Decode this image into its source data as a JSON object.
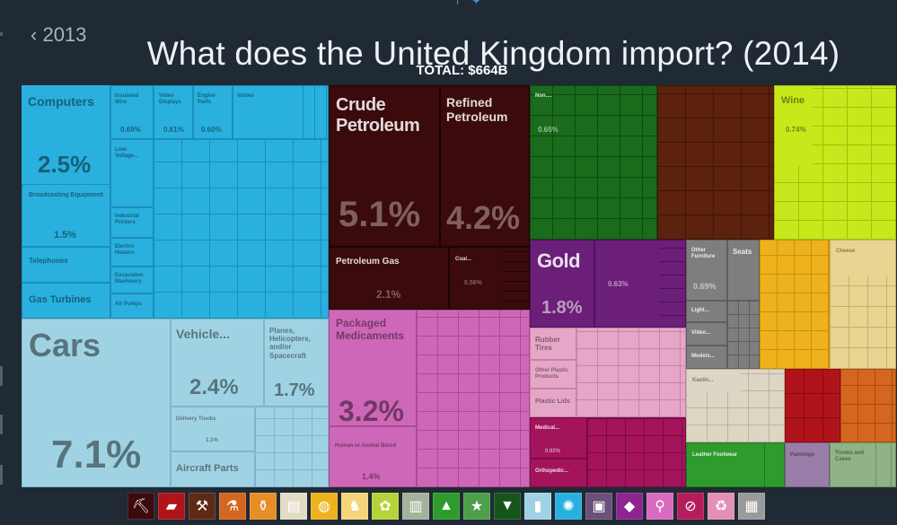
{
  "header": {
    "prev_year": "2013",
    "title": "What does the United Kingdom import? (2014)",
    "total": "TOTAL: $664B"
  },
  "chart_data": {
    "type": "treemap",
    "title": "What does the United Kingdom import? (2014)",
    "total": "TOTAL: $664B",
    "cells": [
      {
        "label": "Computers",
        "value": "2.5%",
        "color": "#29b0de"
      },
      {
        "label": "Insulated Wire",
        "value": "0.69%",
        "color": "#29b0de"
      },
      {
        "label": "Video Displays",
        "value": "0.61%",
        "color": "#29b0de"
      },
      {
        "label": "Engine Parts",
        "value": "0.60%",
        "color": "#29b0de"
      },
      {
        "label": "Valves",
        "value": "",
        "color": "#29b0de"
      },
      {
        "label": "Low-Voltage...",
        "value": "",
        "color": "#29b0de"
      },
      {
        "label": "Broadcasting Equipment",
        "value": "1.5%",
        "color": "#29b0de"
      },
      {
        "label": "Industrial Printers",
        "value": "",
        "color": "#29b0de"
      },
      {
        "label": "Electric Heaters",
        "value": "",
        "color": "#29b0de"
      },
      {
        "label": "Telephones",
        "value": "",
        "color": "#29b0de"
      },
      {
        "label": "Excavation Machinery",
        "value": "",
        "color": "#29b0de"
      },
      {
        "label": "Gas Turbines",
        "value": "",
        "color": "#29b0de"
      },
      {
        "label": "Air Pumps",
        "value": "",
        "color": "#29b0de"
      },
      {
        "label": "Cars",
        "value": "7.1%",
        "color": "#9fd3e3"
      },
      {
        "label": "Vehicle...",
        "value": "2.4%",
        "color": "#9fd3e3"
      },
      {
        "label": "Planes, Helicopters, and/or Spacecraft",
        "value": "1.7%",
        "color": "#9fd3e3"
      },
      {
        "label": "Delivery Trucks",
        "value": "1.1%",
        "color": "#9fd3e3"
      },
      {
        "label": "Aircraft Parts",
        "value": "",
        "color": "#9fd3e3"
      },
      {
        "label": "Crude Petroleum",
        "value": "5.1%",
        "color": "#3b0a0c"
      },
      {
        "label": "Refined Petroleum",
        "value": "4.2%",
        "color": "#3b0a0c"
      },
      {
        "label": "Petroleum Gas",
        "value": "2.1%",
        "color": "#3b0a0c"
      },
      {
        "label": "Coal...",
        "value": "0.56%",
        "color": "#3b0a0c"
      },
      {
        "label": "Packaged Medicaments",
        "value": "3.2%",
        "color": "#cf67b8"
      },
      {
        "label": "Human or Animal Blood",
        "value": "1.4%",
        "color": "#cf67b8"
      },
      {
        "label": "Non....",
        "value": "0.65%",
        "color": "#1a6b1c"
      },
      {
        "label": "Wine",
        "value": "0.74%",
        "color": "#c7e81b"
      },
      {
        "label": "Gold",
        "value": "1.8%",
        "color": "#6b1f78"
      },
      {
        "label": "",
        "value": "0.63%",
        "color": "#6b1f78"
      },
      {
        "label": "Other Furniture",
        "value": "0.69%",
        "color": "#7e7e7e"
      },
      {
        "label": "Seats",
        "value": "",
        "color": "#7e7e7e"
      },
      {
        "label": "Light...",
        "value": "",
        "color": "#7e7e7e"
      },
      {
        "label": "Video...",
        "value": "",
        "color": "#7e7e7e"
      },
      {
        "label": "Models...",
        "value": "",
        "color": "#7e7e7e"
      },
      {
        "label": "Cheese",
        "value": "",
        "color": "#e8d592"
      },
      {
        "label": "Rubber Tires",
        "value": "",
        "color": "#e5a6c7"
      },
      {
        "label": "Other Plastic Products",
        "value": "",
        "color": "#e5a6c7"
      },
      {
        "label": "Plastic Lids",
        "value": "",
        "color": "#e5a6c7"
      },
      {
        "label": "Kaolin...",
        "value": "",
        "color": "#ddd6c4"
      },
      {
        "label": "Medical...",
        "value": "0.92%",
        "color": "#a3145c"
      },
      {
        "label": "Orthopedic...",
        "value": "",
        "color": "#a3145c"
      },
      {
        "label": "Leather Footwear",
        "value": "",
        "color": "#2e9c2d"
      },
      {
        "label": "Paintings",
        "value": "",
        "color": "#9b7da9"
      },
      {
        "label": "Trunks and Cases",
        "value": "",
        "color": "#8fb386"
      }
    ]
  },
  "icons": [
    {
      "name": "mining-icon",
      "glyph": "⛏",
      "color": "#3b0a0c"
    },
    {
      "name": "metals-icon",
      "glyph": "▰",
      "color": "#b0141a"
    },
    {
      "name": "anvil-icon",
      "glyph": "⚒",
      "color": "#5e2a15"
    },
    {
      "name": "chemical-icon",
      "glyph": "⚗",
      "color": "#d4661f"
    },
    {
      "name": "bottle-icon",
      "glyph": "⚱",
      "color": "#e78e27"
    },
    {
      "name": "paper-icon",
      "glyph": "▤",
      "color": "#e2dbc4"
    },
    {
      "name": "food-icon",
      "glyph": "◍",
      "color": "#edb21c"
    },
    {
      "name": "animal-icon",
      "glyph": "♞",
      "color": "#f3d67a"
    },
    {
      "name": "vegetable-icon",
      "glyph": "✿",
      "color": "#b6d33a"
    },
    {
      "name": "stone-icon",
      "glyph": "▥",
      "color": "#a4b39b"
    },
    {
      "name": "shoe-icon",
      "glyph": "▲",
      "color": "#2e9c2d"
    },
    {
      "name": "star-icon",
      "glyph": "★",
      "color": "#4d9f4a"
    },
    {
      "name": "textile-icon",
      "glyph": "▼",
      "color": "#16551a"
    },
    {
      "name": "transport-icon",
      "glyph": "▮",
      "color": "#9fd3e3"
    },
    {
      "name": "machine-icon",
      "glyph": "✺",
      "color": "#29b0de"
    },
    {
      "name": "art-icon",
      "glyph": "▣",
      "color": "#6b5079"
    },
    {
      "name": "gem-icon",
      "glyph": "◆",
      "color": "#8d2490"
    },
    {
      "name": "chemical-flask-icon",
      "glyph": "⚲",
      "color": "#d96bc0"
    },
    {
      "name": "weapon-icon",
      "glyph": "⊘",
      "color": "#b51d5a"
    },
    {
      "name": "recycle-icon",
      "glyph": "♻",
      "color": "#e48fb6"
    },
    {
      "name": "misc-icon",
      "glyph": "▦",
      "color": "#9a9a9a"
    }
  ]
}
